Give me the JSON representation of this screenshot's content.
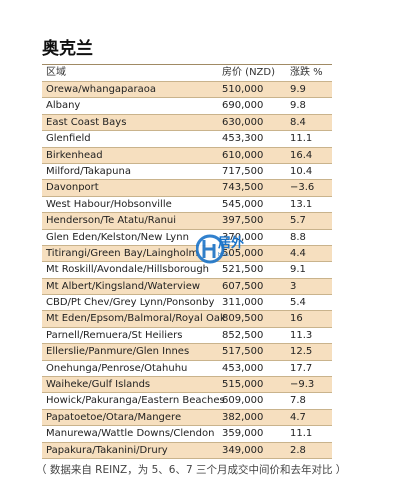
{
  "title": "奥克兰",
  "table": {
    "headers": [
      "区域",
      "房价 (NZD)",
      "涨跌 %"
    ],
    "rows": [
      [
        "Orewa/whangaparaoa",
        "510,000",
        "9.9"
      ],
      [
        "Albany",
        "690,000",
        "9.8"
      ],
      [
        "East Coast Bays",
        "630,000",
        "8.4"
      ],
      [
        "Glenfield",
        "453,300",
        "11.1"
      ],
      [
        "Birkenhead",
        "610,000",
        "16.4"
      ],
      [
        "Milford/Takapuna",
        "717,500",
        "10.4"
      ],
      [
        "Davonport",
        "743,500",
        "−3.6"
      ],
      [
        "West Habour/Hobsonville",
        "545,000",
        "13.1"
      ],
      [
        "Henderson/Te Atatu/Ranui",
        "397,500",
        "5.7"
      ],
      [
        "Glen Eden/Kelston/New Lynn",
        "370,000",
        "8.8"
      ],
      [
        "Titirangi/Green Bay/Laingholm",
        "505,000",
        "4.4"
      ],
      [
        "Mt Roskill/Avondale/Hillsborough",
        "521,500",
        "9.1"
      ],
      [
        "Mt Albert/Kingsland/Waterview",
        "607,500",
        "3"
      ],
      [
        "CBD/Pt Chev/Grey Lynn/Ponsonby",
        "311,000",
        "5.4"
      ],
      [
        "Mt Eden/Epsom/Balmoral/Royal Oak",
        "809,500",
        "16"
      ],
      [
        "Parnell/Remuera/St Heiliers",
        "852,500",
        "11.3"
      ],
      [
        "Ellerslie/Panmure/Glen Innes",
        "517,500",
        "12.5"
      ],
      [
        "Onehunga/Penrose/Otahuhu",
        "453,000",
        "17.7"
      ],
      [
        "Waiheke/Gulf Islands",
        "515,000",
        "−9.3"
      ],
      [
        "Howick/Pakuranga/Eastern Beaches",
        "609,000",
        "7.8"
      ],
      [
        "Papatoetoe/Otara/Mangere",
        "382,000",
        "4.7"
      ],
      [
        "Manurewa/Wattle Downs/Clendon",
        "359,000",
        "11.1"
      ],
      [
        "Papakura/Takanini/Drury",
        "349,000",
        "2.8"
      ]
    ]
  },
  "footnote": "（ 数据来自 REINZ，为 5、6、7 三个月成交中间价和去年对比 ）",
  "watermark": {
    "text": "居外",
    "sub": "Hou..."
  }
}
